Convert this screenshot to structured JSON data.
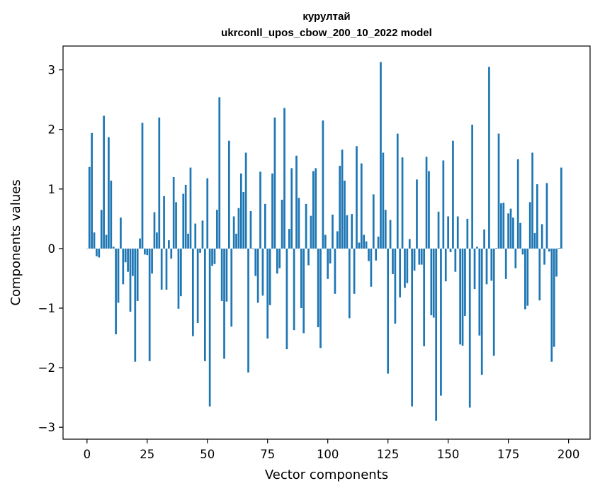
{
  "chart_data": {
    "type": "bar",
    "title": "курултай",
    "subtitle": "ukrconll_upos_cbow_200_10_2022 model",
    "xlabel": "Vector components",
    "ylabel": "Components values",
    "xlim": [
      -9.95,
      208.95
    ],
    "ylim": [
      -3.2,
      3.4
    ],
    "xticks": [
      0,
      25,
      50,
      75,
      100,
      125,
      150,
      175,
      200
    ],
    "yticks": [
      -3,
      -2,
      -1,
      0,
      1,
      2,
      3
    ],
    "ytick_labels": [
      "−3",
      "−2",
      "−1",
      "0",
      "1",
      "2",
      "3"
    ],
    "bar_color": "#1f77b4",
    "grid": false,
    "legend": "none",
    "series": [
      {
        "values": [
          0.0,
          1.37,
          1.94,
          0.27,
          -0.13,
          -0.15,
          0.65,
          2.23,
          0.23,
          1.87,
          1.14,
          0.03,
          -1.44,
          -0.91,
          0.52,
          -0.6,
          -0.23,
          -0.39,
          -1.06,
          -0.46,
          -1.9,
          -0.88,
          0.17,
          2.11,
          -0.1,
          -0.11,
          -1.89,
          -0.42,
          0.61,
          0.27,
          2.2,
          -0.69,
          0.88,
          -0.69,
          0.14,
          -0.17,
          1.2,
          0.78,
          -1.01,
          -0.8,
          0.92,
          1.07,
          0.25,
          1.36,
          -1.47,
          0.42,
          -1.25,
          -0.07,
          0.47,
          -1.89,
          1.18,
          -2.65,
          -0.29,
          -0.26,
          0.65,
          2.54,
          -0.88,
          -1.85,
          -0.89,
          1.81,
          -1.31,
          0.54,
          0.25,
          0.68,
          1.26,
          0.95,
          1.61,
          -2.08,
          0.63,
          -0.01,
          -0.46,
          -0.91,
          1.29,
          -0.79,
          0.75,
          -1.51,
          -0.95,
          1.26,
          2.2,
          -0.42,
          -0.33,
          0.82,
          2.36,
          -1.69,
          0.33,
          1.35,
          -1.37,
          1.56,
          0.85,
          -1.0,
          -1.42,
          0.75,
          -0.28,
          0.55,
          1.3,
          1.35,
          -1.32,
          -1.67,
          2.15,
          0.23,
          -0.51,
          -0.25,
          0.57,
          -0.76,
          0.29,
          1.39,
          1.66,
          1.14,
          0.56,
          -1.17,
          0.58,
          -0.76,
          1.72,
          0.1,
          1.43,
          0.23,
          0.12,
          -0.21,
          -0.64,
          0.91,
          -0.2,
          0.2,
          3.13,
          1.61,
          0.65,
          -2.1,
          0.48,
          -0.43,
          -1.26,
          1.93,
          -0.82,
          1.53,
          -0.66,
          -0.58,
          0.16,
          -2.65,
          -0.37,
          1.16,
          -0.27,
          -0.27,
          -1.64,
          1.54,
          1.3,
          -1.12,
          -1.16,
          -2.89,
          0.62,
          -2.47,
          1.48,
          -0.55,
          0.54,
          -0.06,
          1.81,
          -0.39,
          0.54,
          -1.61,
          -1.63,
          -1.13,
          0.5,
          -2.67,
          2.08,
          -0.68,
          0.03,
          -1.46,
          -2.12,
          0.32,
          -0.6,
          3.05,
          -0.54,
          -1.8,
          0.01,
          1.93,
          0.76,
          0.77,
          -0.51,
          0.59,
          0.67,
          0.52,
          -0.33,
          1.5,
          0.43,
          -0.1,
          -1.02,
          -0.96,
          0.78,
          1.61,
          0.26,
          1.08,
          -0.87,
          0.41,
          -0.27,
          1.1,
          -0.05,
          -1.9,
          -1.65,
          -0.47,
          0.01,
          1.36
        ]
      }
    ]
  }
}
